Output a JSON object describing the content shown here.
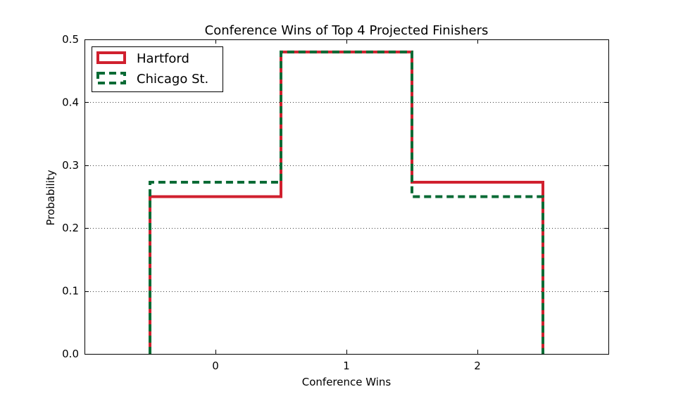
{
  "chart_data": {
    "type": "step-histogram",
    "title": "Conference Wins of Top 4 Projected Finishers",
    "xlabel": "Conference Wins",
    "ylabel": "Probability",
    "xlim": [
      -1.0,
      3.0
    ],
    "ylim": [
      0.0,
      0.5
    ],
    "xticks": [
      0,
      1,
      2
    ],
    "yticks": [
      0.0,
      0.1,
      0.2,
      0.3,
      0.4,
      0.5
    ],
    "ytick_labels": [
      "0.0",
      "0.1",
      "0.2",
      "0.3",
      "0.4",
      "0.5"
    ],
    "grid": "y-dotted",
    "legend_position": "upper-left",
    "bin_edges": [
      -0.5,
      0.5,
      1.5,
      2.5
    ],
    "series": [
      {
        "name": "Hartford",
        "values": [
          0.25,
          0.48,
          0.273
        ],
        "color": "#d0202e",
        "style": "solid"
      },
      {
        "name": "Chicago St.",
        "values": [
          0.273,
          0.48,
          0.25
        ],
        "color": "#0a6b35",
        "style": "dashed"
      }
    ]
  }
}
